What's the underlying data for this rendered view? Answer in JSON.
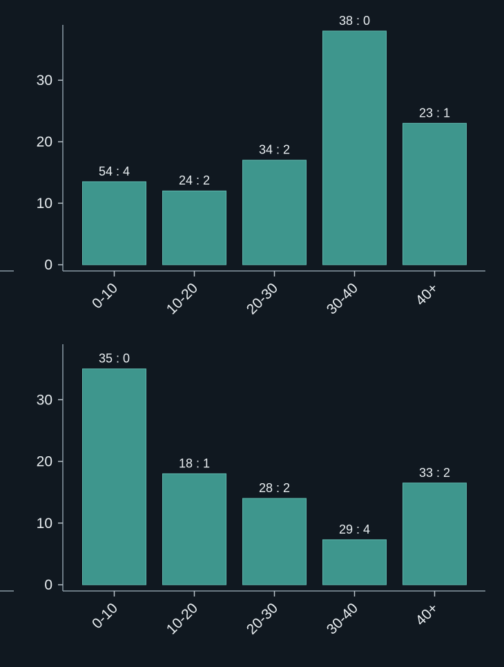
{
  "colors": {
    "background": "#101820",
    "bar_fill": "#3e968d",
    "bar_edge": "#5fb8ae",
    "axis": "#8a9aa6",
    "text": "#e8edf0"
  },
  "chart_data": [
    {
      "type": "bar",
      "title": "",
      "xlabel": "",
      "ylabel": "",
      "categories": [
        "0-10",
        "10-20",
        "20-30",
        "30-40",
        "40+"
      ],
      "values": [
        13.5,
        12,
        17,
        38,
        23
      ],
      "data_labels": [
        "54 : 4",
        "24 : 2",
        "34 : 2",
        "38 : 0",
        "23 : 1"
      ],
      "yticks": [
        0,
        10,
        20,
        30
      ],
      "ylim": [
        0,
        39
      ],
      "grid": false
    },
    {
      "type": "bar",
      "title": "",
      "xlabel": "",
      "ylabel": "",
      "categories": [
        "0-10",
        "10-20",
        "20-30",
        "30-40",
        "40+"
      ],
      "values": [
        35,
        18,
        14,
        7.3,
        16.5
      ],
      "data_labels": [
        "35 : 0",
        "18 : 1",
        "28 : 2",
        "29 : 4",
        "33 : 2"
      ],
      "yticks": [
        0,
        10,
        20,
        30
      ],
      "ylim": [
        0,
        39
      ],
      "grid": false
    }
  ]
}
